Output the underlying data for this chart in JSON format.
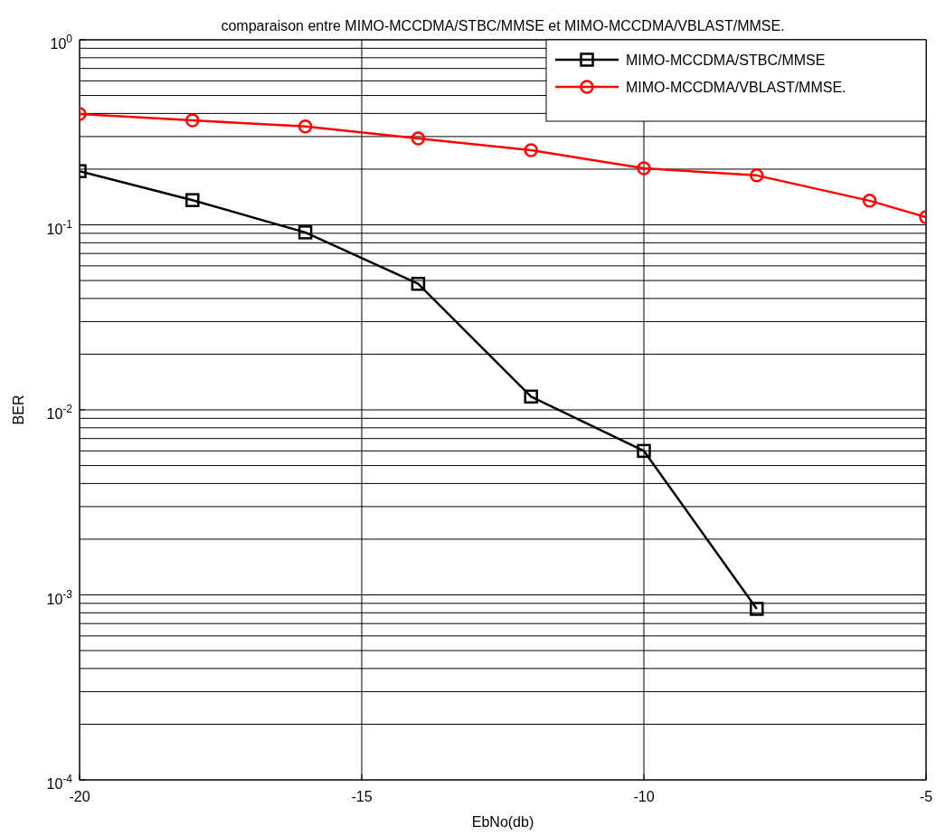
{
  "chart_data": {
    "type": "line",
    "title": "comparaison entre MIMO-MCCDMA/STBC/MMSE et MIMO-MCCDMA/VBLAST/MMSE.",
    "xlabel": "EbNo(db)",
    "ylabel": "BER",
    "series": [
      {
        "name": "MIMO-MCCDMA/STBC/MMSE",
        "color": "#000000",
        "marker": "square",
        "x": [
          -20,
          -18,
          -16,
          -14,
          -12,
          -10,
          -8
        ],
        "values": [
          0.195,
          0.136,
          0.091,
          0.048,
          0.0118,
          0.006,
          0.00084
        ]
      },
      {
        "name": "MIMO-MCCDMA/VBLAST/MMSE.",
        "color": "#ff0000",
        "marker": "circle",
        "x": [
          -20,
          -18,
          -16,
          -14,
          -12,
          -10,
          -8,
          -6,
          -5
        ],
        "values": [
          0.397,
          0.367,
          0.34,
          0.293,
          0.253,
          0.202,
          0.185,
          0.135,
          0.11
        ]
      }
    ],
    "log": true,
    "xlim": [
      -20,
      -5
    ],
    "ylim": [
      0.0001,
      1
    ],
    "xticks": [
      -20,
      -15,
      -10,
      -5
    ],
    "yticks": [
      {
        "value": 0.0001,
        "label": "10$^{-4}$"
      },
      {
        "value": 0.001,
        "label": "10$^{-3}$"
      },
      {
        "value": 0.01,
        "label": "10$^{-2}$"
      },
      {
        "value": 0.1,
        "label": "10$^{-1}$"
      },
      {
        "value": 1,
        "label": "10$^{0}$"
      }
    ],
    "grid": true,
    "legend": "top right",
    "line_style": "solid"
  }
}
